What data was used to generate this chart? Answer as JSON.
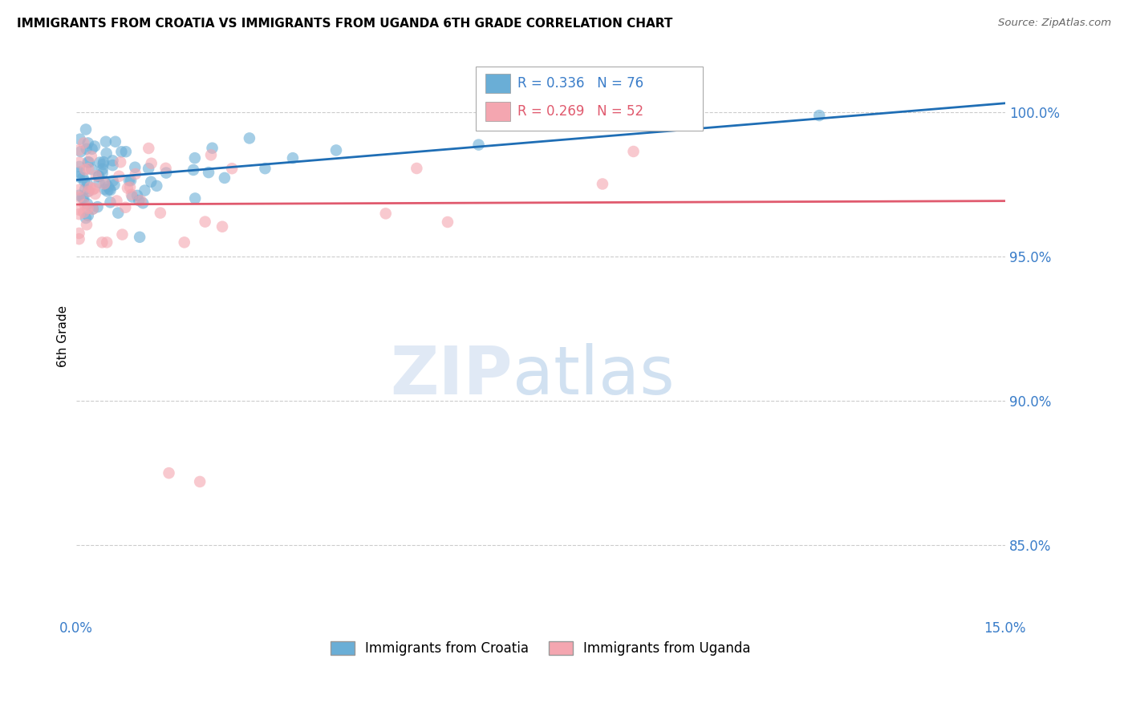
{
  "title": "IMMIGRANTS FROM CROATIA VS IMMIGRANTS FROM UGANDA 6TH GRADE CORRELATION CHART",
  "source": "Source: ZipAtlas.com",
  "ylabel": "6th Grade",
  "ytick_labels": [
    "100.0%",
    "95.0%",
    "90.0%",
    "85.0%"
  ],
  "ytick_values": [
    1.0,
    0.95,
    0.9,
    0.85
  ],
  "xlim": [
    0.0,
    0.15
  ],
  "ylim": [
    0.825,
    1.02
  ],
  "legend_label1": "Immigrants from Croatia",
  "legend_label2": "Immigrants from Uganda",
  "r1": 0.336,
  "n1": 76,
  "r2": 0.269,
  "n2": 52,
  "color_croatia": "#6aaed6",
  "color_uganda": "#f4a6b0",
  "trendline_color_croatia": "#1f6eb5",
  "trendline_color_uganda": "#e05a6e",
  "background_color": "#ffffff",
  "grid_color": "#cccccc"
}
